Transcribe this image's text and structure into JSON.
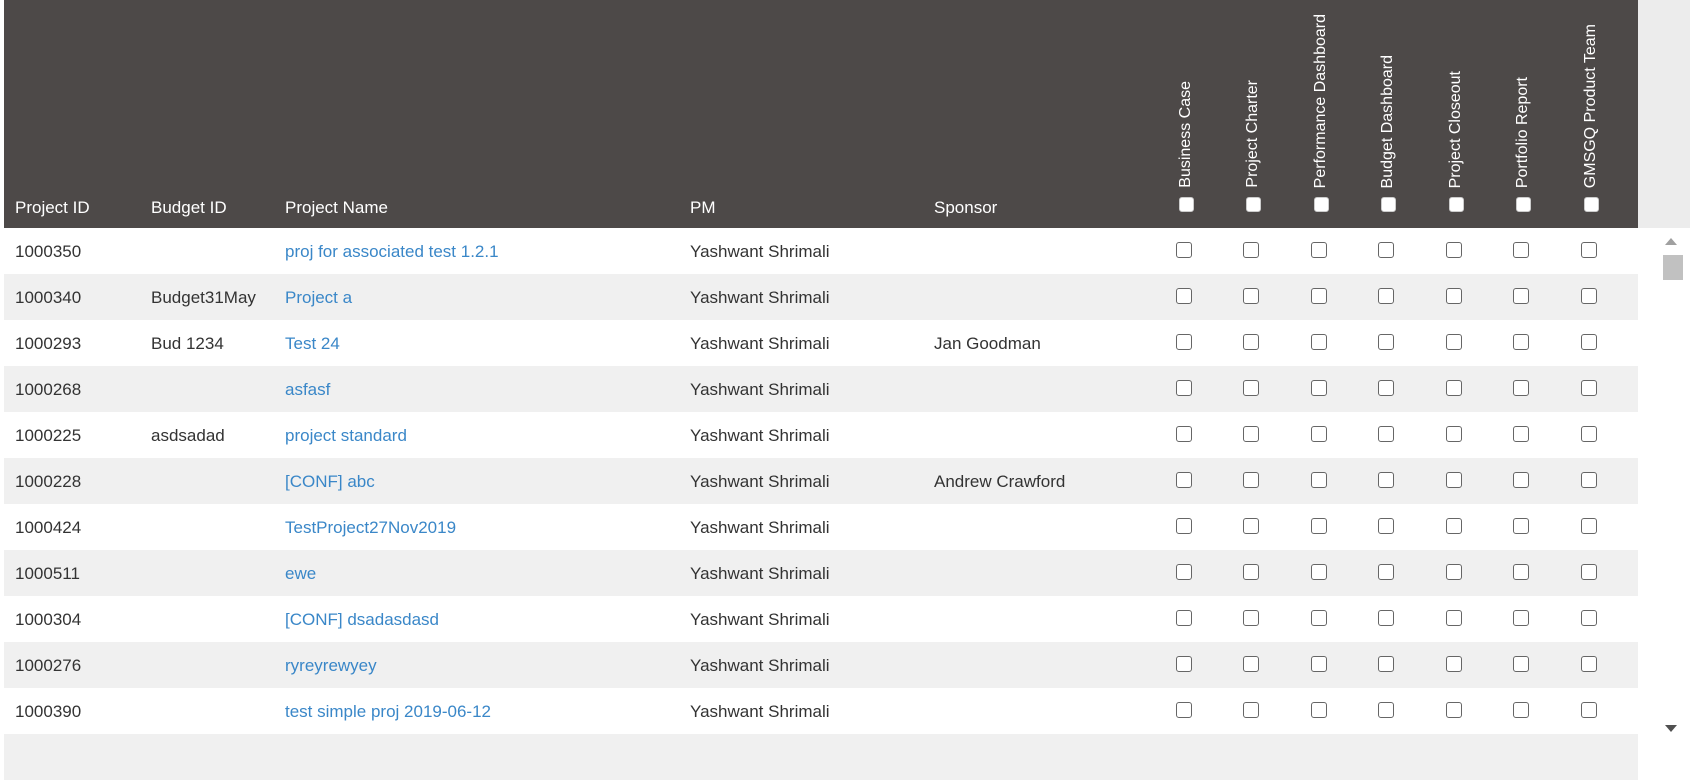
{
  "columns": {
    "project_id": "Project ID",
    "budget_id": "Budget ID",
    "project_name": "Project Name",
    "pm": "PM",
    "sponsor": "Sponsor"
  },
  "doc_columns": [
    "Business Case",
    "Project Charter",
    "Performance Dashboard",
    "Budget Dashboard",
    "Project Closeout",
    "Portfolio Report",
    "GMSGQ Product Team"
  ],
  "rows": [
    {
      "id": "1000350",
      "budget": "",
      "name": "proj for associated test 1.2.1",
      "pm": "Yashwant Shrimali",
      "sponsor": ""
    },
    {
      "id": "1000340",
      "budget": "Budget31May",
      "name": "Project a",
      "pm": "Yashwant Shrimali",
      "sponsor": ""
    },
    {
      "id": "1000293",
      "budget": "Bud 1234",
      "name": "Test 24",
      "pm": "Yashwant Shrimali",
      "sponsor": "Jan Goodman"
    },
    {
      "id": "1000268",
      "budget": "",
      "name": "asfasf",
      "pm": "Yashwant Shrimali",
      "sponsor": ""
    },
    {
      "id": "1000225",
      "budget": "asdsadad",
      "name": "project standard",
      "pm": "Yashwant Shrimali",
      "sponsor": ""
    },
    {
      "id": "1000228",
      "budget": "",
      "name": "[CONF] abc",
      "pm": "Yashwant Shrimali",
      "sponsor": "Andrew Crawford"
    },
    {
      "id": "1000424",
      "budget": "",
      "name": "TestProject27Nov2019",
      "pm": "Yashwant Shrimali",
      "sponsor": ""
    },
    {
      "id": "1000511",
      "budget": "",
      "name": "ewe",
      "pm": "Yashwant Shrimali",
      "sponsor": ""
    },
    {
      "id": "1000304",
      "budget": "",
      "name": "[CONF] dsadasdasd",
      "pm": "Yashwant Shrimali",
      "sponsor": ""
    },
    {
      "id": "1000276",
      "budget": "",
      "name": "ryreyrewyey",
      "pm": "Yashwant Shrimali",
      "sponsor": ""
    },
    {
      "id": "1000390",
      "budget": "",
      "name": "test simple proj 2019-06-12",
      "pm": "Yashwant Shrimali",
      "sponsor": ""
    }
  ],
  "colors": {
    "header_bg": "#4d4948",
    "link": "#3a87c8",
    "alt_row": "#f0f0f0"
  }
}
